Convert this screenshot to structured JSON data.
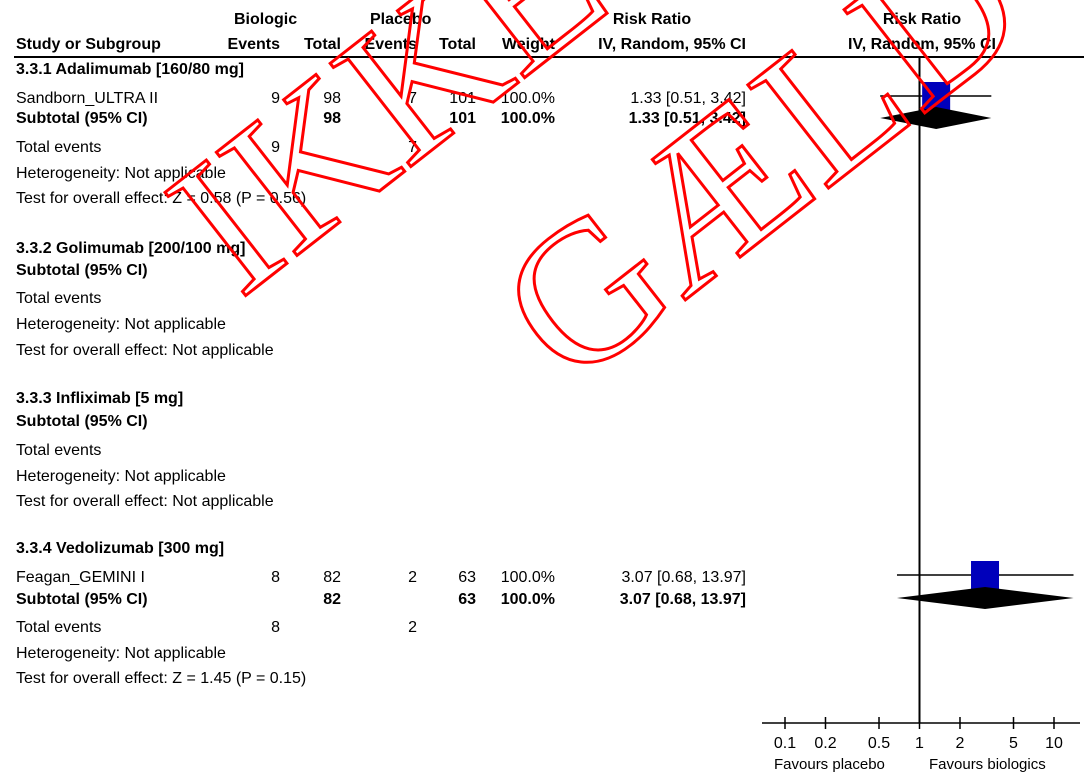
{
  "header": {
    "group_biologic": "Biologic",
    "group_placebo": "Placebo",
    "group_rr_left": "Risk Ratio",
    "group_rr_right": "Risk Ratio",
    "col_study": "Study or Subgroup",
    "col_events_bio": "Events",
    "col_total_bio": "Total",
    "col_events_pla": "Events",
    "col_total_pla": "Total",
    "col_weight": "Weight",
    "col_method_left": "IV, Random, 95% CI",
    "col_method_right": "IV, Random, 95% CI"
  },
  "groups": [
    {
      "title": "3.3.1 Adalimumab [160/80 mg]",
      "study": {
        "name": "Sandborn_ULTRA II",
        "ev_bio": "9",
        "tot_bio": "98",
        "ev_pla": "7",
        "tot_pla": "101",
        "weight": "100.0%",
        "ci": "1.33 [0.51, 3.42]"
      },
      "subtotal": {
        "label": "Subtotal (95% CI)",
        "tot_bio": "98",
        "tot_pla": "101",
        "weight": "100.0%",
        "ci": "1.33 [0.51, 3.42]"
      },
      "total_events": {
        "label": "Total events",
        "bio": "9",
        "pla": "7"
      },
      "heterogeneity": "Heterogeneity: Not applicable",
      "overall": "Test for overall effect: Z = 0.58 (P = 0.56)"
    },
    {
      "title": "3.3.2 Golimumab [200/100 mg]",
      "subtotal": {
        "label": "Subtotal (95% CI)"
      },
      "total_events": {
        "label": "Total events"
      },
      "heterogeneity": "Heterogeneity: Not applicable",
      "overall": "Test for overall effect: Not applicable"
    },
    {
      "title": "3.3.3 Infliximab [5 mg]",
      "subtotal": {
        "label": "Subtotal (95% CI)"
      },
      "total_events": {
        "label": "Total events"
      },
      "heterogeneity": "Heterogeneity: Not applicable",
      "overall": "Test for overall effect: Not applicable"
    },
    {
      "title": "3.3.4 Vedolizumab [300 mg]",
      "study": {
        "name": "Feagan_GEMINI I",
        "ev_bio": "8",
        "tot_bio": "82",
        "ev_pla": "2",
        "tot_pla": "63",
        "weight": "100.0%",
        "ci": "3.07 [0.68, 13.97]"
      },
      "subtotal": {
        "label": "Subtotal (95% CI)",
        "tot_bio": "82",
        "tot_pla": "63",
        "weight": "100.0%",
        "ci": "3.07 [0.68, 13.97]"
      },
      "total_events": {
        "label": "Total events",
        "bio": "8",
        "pla": "2"
      },
      "heterogeneity": "Heterogeneity: Not applicable",
      "overall": "Test for overall effect: Z = 1.45 (P = 0.15)"
    }
  ],
  "axis": {
    "favours_left": "Favours placebo",
    "favours_right": "Favours biologics"
  },
  "watermark": {
    "line1": "IKKE",
    "line2": "GÆLD"
  },
  "chart_data": {
    "type": "forest",
    "scale": "log",
    "xlim": [
      0.1,
      10
    ],
    "ticks": [
      0.1,
      0.2,
      0.5,
      1,
      2,
      5,
      10
    ],
    "tick_labels": [
      "0.1",
      "0.2",
      "0.5",
      "1",
      "2",
      "5",
      "10"
    ],
    "reference": 1,
    "studies": [
      {
        "name": "Sandborn_ULTRA II",
        "rr": 1.33,
        "lo": 0.51,
        "hi": 3.42,
        "weight": 100.0
      },
      {
        "name": "Feagan_GEMINI I",
        "rr": 3.07,
        "lo": 0.68,
        "hi": 13.97,
        "weight": 100.0
      }
    ],
    "subtotals": [
      {
        "group": "3.3.1 Adalimumab [160/80 mg]",
        "rr": 1.33,
        "lo": 0.51,
        "hi": 3.42
      },
      {
        "group": "3.3.4 Vedolizumab [300 mg]",
        "rr": 3.07,
        "lo": 0.68,
        "hi": 13.97
      }
    ],
    "colors": {
      "square": "#0000bb",
      "diamond": "#000000",
      "watermark": "#ff0000"
    }
  }
}
